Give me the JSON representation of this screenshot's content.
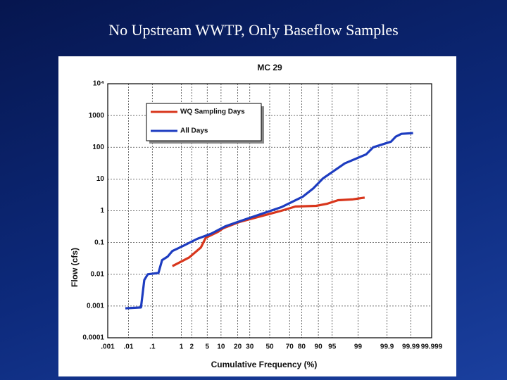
{
  "slide_title": "No Upstream WWTP, Only Baseflow Samples",
  "chart_data": {
    "type": "line",
    "title": "MC 29",
    "xlabel": "Cumulative Frequency (%)",
    "ylabel": "Flow (cfs)",
    "xscale": "probability",
    "yscale": "log",
    "grid": true,
    "legend": "upper left",
    "xlim": [
      0.001,
      99.999
    ],
    "ylim": [
      0.0001,
      10000
    ],
    "xticks": [
      {
        "value": 0.001,
        "label": ".001"
      },
      {
        "value": 0.01,
        "label": ".01"
      },
      {
        "value": 0.1,
        "label": ".1"
      },
      1,
      2,
      5,
      10,
      20,
      30,
      50,
      70,
      80,
      90,
      95,
      99,
      99.9,
      99.99,
      99.999
    ],
    "yticks": [
      {
        "value": 10000,
        "label": "10⁴"
      },
      1000,
      100,
      10,
      1,
      0.1,
      0.01,
      0.001,
      0.0001
    ],
    "series": [
      {
        "name": "WQ Sampling Days",
        "color": "#d8361c",
        "x": [
          0.52,
          1.7,
          3.5,
          4.6,
          8.8,
          11,
          21,
          40,
          62,
          75,
          89,
          93.6,
          96.4,
          98.5,
          99.38
        ],
        "values": [
          0.018,
          0.034,
          0.07,
          0.14,
          0.22,
          0.28,
          0.44,
          0.66,
          1.0,
          1.36,
          1.43,
          1.67,
          2.15,
          2.27,
          2.6
        ]
      },
      {
        "name": "All Days",
        "color": "#1d3cc0",
        "x": [
          0.0072,
          0.035,
          0.048,
          0.066,
          0.17,
          0.23,
          0.36,
          0.52,
          1.1,
          2.8,
          6.2,
          12,
          21,
          40,
          62,
          81,
          87.5,
          92,
          97.6,
          99.45,
          99.68,
          99.93,
          99.955,
          99.974,
          99.992
        ],
        "values": [
          0.00085,
          0.0009,
          0.0066,
          0.01,
          0.011,
          0.028,
          0.036,
          0.054,
          0.077,
          0.13,
          0.19,
          0.32,
          0.46,
          0.77,
          1.3,
          2.8,
          5.1,
          10.5,
          31,
          60,
          100,
          150,
          215,
          265,
          280
        ]
      }
    ]
  }
}
